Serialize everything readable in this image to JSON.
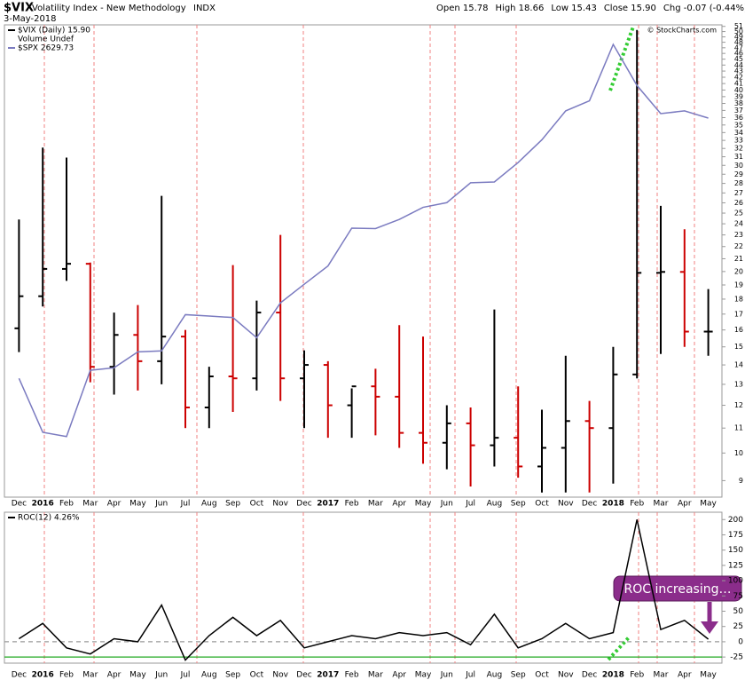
{
  "header": {
    "symbol": "$VIX",
    "name": "Volatility Index - New Methodology",
    "exchange": "INDX",
    "date": "3-May-2018",
    "quote": [
      "Open 15.78",
      "High 18.66",
      "Low 15.43",
      "Close 15.90",
      "Chg -0.07 (-0.44%)"
    ]
  },
  "watermark": "© StockCharts.com",
  "annotation": "ROC increasing…",
  "chart_data": [
    {
      "type": "ohlc",
      "categories": [
        "Dec",
        "2016",
        "Feb",
        "Mar",
        "Apr",
        "May",
        "Jun",
        "Jul",
        "Aug",
        "Sep",
        "Oct",
        "Nov",
        "Dec",
        "2017",
        "Feb",
        "Mar",
        "Apr",
        "May",
        "Jun",
        "Jul",
        "Aug",
        "Sep",
        "Oct",
        "Nov",
        "Dec",
        "2018",
        "Feb",
        "Mar",
        "Apr",
        "May"
      ],
      "legend_notes": [
        "Volume Undef"
      ],
      "series": [
        {
          "name": "$VIX (Daily) 15.90",
          "color": "#000000",
          "down_color": "#cc0000",
          "open": [
            16.1,
            18.2,
            20.2,
            20.6,
            13.9,
            15.7,
            14.2,
            15.6,
            11.9,
            13.4,
            13.3,
            17.1,
            13.3,
            14.0,
            12.0,
            12.9,
            12.4,
            10.8,
            10.4,
            11.2,
            10.3,
            10.6,
            9.5,
            10.2,
            11.3,
            11.0,
            13.5,
            19.9,
            19.97,
            15.9
          ],
          "high": [
            24.4,
            32.1,
            30.9,
            20.7,
            17.1,
            17.6,
            26.7,
            16.0,
            13.9,
            20.5,
            17.9,
            23.0,
            14.8,
            14.2,
            12.8,
            13.8,
            16.3,
            15.6,
            12.0,
            11.9,
            17.3,
            12.9,
            11.8,
            14.5,
            12.2,
            15.0,
            50.3,
            25.7,
            23.5,
            18.7
          ],
          "low": [
            14.7,
            17.5,
            19.3,
            13.1,
            12.5,
            12.7,
            13.0,
            11.0,
            11.0,
            11.7,
            12.7,
            12.2,
            11.0,
            10.6,
            10.6,
            10.7,
            10.2,
            9.6,
            9.4,
            8.8,
            9.5,
            9.1,
            8.6,
            8.6,
            8.6,
            8.9,
            13.3,
            14.6,
            15.0,
            14.5
          ],
          "close": [
            18.2,
            20.2,
            20.6,
            13.9,
            15.7,
            14.2,
            15.6,
            11.9,
            13.4,
            13.3,
            17.1,
            13.3,
            14.0,
            12.0,
            12.9,
            12.4,
            10.8,
            10.4,
            11.2,
            10.3,
            10.6,
            9.5,
            10.2,
            11.3,
            11.0,
            13.5,
            19.9,
            19.97,
            15.9,
            15.9
          ]
        },
        {
          "name": "$SPX 2629.73",
          "color": "#7b7bc0",
          "type": "line",
          "axis": "y2",
          "values": [
            2044,
            1940,
            1932,
            2060,
            2065,
            2097,
            2099,
            2174,
            2171,
            2168,
            2126,
            2199,
            2239,
            2279,
            2364,
            2363,
            2384,
            2412,
            2423,
            2470,
            2472,
            2519,
            2575,
            2648,
            2674,
            2824,
            2714,
            2641,
            2648,
            2629.73
          ]
        }
      ],
      "log_scale": true,
      "ylim": [
        8.45,
        51.3
      ],
      "yticks": [
        9,
        10,
        11,
        12,
        13,
        14,
        15,
        16,
        17,
        18,
        19,
        20,
        21,
        22,
        23,
        24,
        25,
        26,
        27,
        28,
        29,
        30,
        31,
        32,
        33,
        34,
        35,
        36,
        37,
        38,
        39,
        40,
        41,
        42,
        43,
        44,
        45,
        46,
        47,
        48,
        49,
        50,
        51
      ],
      "y2lim": [
        1822,
        2878
      ],
      "y2_log_scale": true
    },
    {
      "type": "line",
      "categories": [
        "Dec",
        "2016",
        "Feb",
        "Mar",
        "Apr",
        "May",
        "Jun",
        "Jul",
        "Aug",
        "Sep",
        "Oct",
        "Nov",
        "Dec",
        "2017",
        "Feb",
        "Mar",
        "Apr",
        "May",
        "Jun",
        "Jul",
        "Aug",
        "Sep",
        "Oct",
        "Nov",
        "Dec",
        "2018",
        "Feb",
        "Mar",
        "Apr",
        "May"
      ],
      "series": [
        {
          "name": "ROC(12) 4.26%",
          "color": "#000000",
          "values": [
            5,
            30,
            -10,
            -20,
            5,
            0,
            60,
            -30,
            10,
            40,
            10,
            35,
            -10,
            0,
            10,
            5,
            15,
            10,
            15,
            -5,
            45,
            -10,
            5,
            30,
            5,
            15,
            200,
            20,
            35,
            4.26
          ]
        }
      ],
      "ylim": [
        -35,
        212
      ],
      "yticks": [
        -25,
        0,
        25,
        50,
        75,
        100,
        125,
        150,
        175,
        200
      ],
      "hlines": [
        {
          "value": -25,
          "color": "#22aa22"
        },
        {
          "value": 0,
          "color": "#999999",
          "dash": true
        }
      ]
    }
  ]
}
